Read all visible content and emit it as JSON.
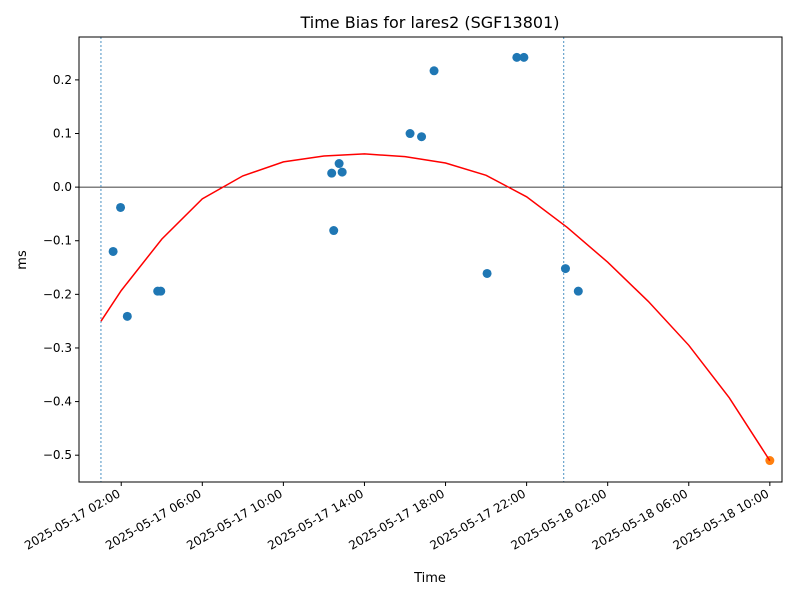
{
  "chart_data": {
    "type": "scatter",
    "title": "Time Bias for lares2 (SGF13801)",
    "xlabel": "Time",
    "ylabel": "ms",
    "x_axis_kind": "datetime",
    "xlim": [
      "2025-05-16T23:55",
      "2025-05-18T10:36"
    ],
    "ylim": [
      -0.55,
      0.28
    ],
    "x_ticks": [
      {
        "value": "2025-05-17T02:00",
        "label": "2025-05-17 02:00"
      },
      {
        "value": "2025-05-17T06:00",
        "label": "2025-05-17 06:00"
      },
      {
        "value": "2025-05-17T10:00",
        "label": "2025-05-17 10:00"
      },
      {
        "value": "2025-05-17T14:00",
        "label": "2025-05-17 14:00"
      },
      {
        "value": "2025-05-17T18:00",
        "label": "2025-05-17 18:00"
      },
      {
        "value": "2025-05-17T22:00",
        "label": "2025-05-17 22:00"
      },
      {
        "value": "2025-05-18T02:00",
        "label": "2025-05-18 02:00"
      },
      {
        "value": "2025-05-18T06:00",
        "label": "2025-05-18 06:00"
      },
      {
        "value": "2025-05-18T10:00",
        "label": "2025-05-18 10:00"
      }
    ],
    "y_ticks": [
      {
        "value": 0.2,
        "label": "0.2"
      },
      {
        "value": 0.1,
        "label": "0.1"
      },
      {
        "value": 0.0,
        "label": "0.0"
      },
      {
        "value": -0.1,
        "label": "−0.1"
      },
      {
        "value": -0.2,
        "label": "−0.2"
      },
      {
        "value": -0.3,
        "label": "−0.3"
      },
      {
        "value": -0.4,
        "label": "−0.4"
      },
      {
        "value": -0.5,
        "label": "−0.5"
      }
    ],
    "grid": false,
    "zero_line": 0.0,
    "vertical_lines": [
      "2025-05-17T01:00",
      "2025-05-17T23:50"
    ],
    "series": [
      {
        "kind": "scatter",
        "color": "#1f77b4",
        "points": [
          {
            "x": "2025-05-17T01:36",
            "y": -0.12
          },
          {
            "x": "2025-05-17T01:58",
            "y": -0.038
          },
          {
            "x": "2025-05-17T02:18",
            "y": -0.241
          },
          {
            "x": "2025-05-17T03:48",
            "y": -0.194
          },
          {
            "x": "2025-05-17T03:57",
            "y": -0.194
          },
          {
            "x": "2025-05-17T12:23",
            "y": 0.026
          },
          {
            "x": "2025-05-17T12:29",
            "y": -0.081
          },
          {
            "x": "2025-05-17T12:45",
            "y": 0.044
          },
          {
            "x": "2025-05-17T12:54",
            "y": 0.028
          },
          {
            "x": "2025-05-17T16:15",
            "y": 0.1
          },
          {
            "x": "2025-05-17T16:49",
            "y": 0.094
          },
          {
            "x": "2025-05-17T17:26",
            "y": 0.217
          },
          {
            "x": "2025-05-17T20:03",
            "y": -0.161
          },
          {
            "x": "2025-05-17T21:31",
            "y": 0.242
          },
          {
            "x": "2025-05-17T21:52",
            "y": 0.242
          },
          {
            "x": "2025-05-17T23:55",
            "y": -0.152
          },
          {
            "x": "2025-05-18T00:33",
            "y": -0.194
          }
        ]
      },
      {
        "kind": "scatter",
        "color": "#ff7f0e",
        "points": [
          {
            "x": "2025-05-18T10:00",
            "y": -0.51
          }
        ]
      },
      {
        "kind": "line",
        "color": "#ff0000",
        "points": [
          {
            "x": "2025-05-17T01:00",
            "y": -0.25
          },
          {
            "x": "2025-05-17T02:00",
            "y": -0.193
          },
          {
            "x": "2025-05-17T04:00",
            "y": -0.097
          },
          {
            "x": "2025-05-17T06:00",
            "y": -0.022
          },
          {
            "x": "2025-05-17T08:00",
            "y": 0.021
          },
          {
            "x": "2025-05-17T10:00",
            "y": 0.047
          },
          {
            "x": "2025-05-17T12:00",
            "y": 0.058
          },
          {
            "x": "2025-05-17T14:00",
            "y": 0.062
          },
          {
            "x": "2025-05-17T16:00",
            "y": 0.057
          },
          {
            "x": "2025-05-17T18:00",
            "y": 0.045
          },
          {
            "x": "2025-05-17T20:00",
            "y": 0.022
          },
          {
            "x": "2025-05-17T22:00",
            "y": -0.018
          },
          {
            "x": "2025-05-18T00:00",
            "y": -0.075
          },
          {
            "x": "2025-05-18T02:00",
            "y": -0.14
          },
          {
            "x": "2025-05-18T04:00",
            "y": -0.213
          },
          {
            "x": "2025-05-18T06:00",
            "y": -0.295
          },
          {
            "x": "2025-05-18T08:00",
            "y": -0.393
          },
          {
            "x": "2025-05-18T10:00",
            "y": -0.51
          }
        ]
      }
    ]
  }
}
